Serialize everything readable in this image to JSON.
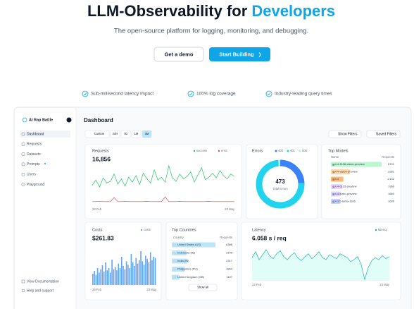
{
  "hero": {
    "title_main": "LLM-Observability for ",
    "title_highlight": "Developers",
    "subtitle": "The open-source platform for logging, monitoring, and debugging.",
    "buttons": [
      "Get a demo",
      "Start Building"
    ],
    "features": [
      "Sub-millisecond latency impact",
      "100% log coverage",
      "Industry-leading query times"
    ]
  },
  "sidebar": {
    "org": "AI Rap Battle",
    "nav": [
      "Dashboard",
      "Requests",
      "Datasets",
      "Prompts",
      "Users",
      "Playground"
    ],
    "footer": [
      "View Documentation",
      "Help and support"
    ]
  },
  "dashboard": {
    "title": "Dashboard",
    "time_filters": [
      "Custom",
      "24H",
      "7D",
      "1M",
      "3M"
    ],
    "actions": [
      "Show Filters",
      "Saved Filters"
    ],
    "requests": {
      "title": "Requests",
      "total": "16,856",
      "x_start": "23 Feb",
      "x_end": "23 May",
      "series": [
        {
          "name": "success",
          "color": "#22c55e",
          "values": [
            42,
            55,
            38,
            60,
            48,
            52,
            70,
            45,
            58,
            40,
            62,
            50,
            66,
            44,
            72,
            58,
            48,
            80,
            55,
            62,
            50,
            90,
            60,
            52,
            70,
            58,
            64,
            75,
            50,
            68,
            85,
            56,
            62,
            72,
            60,
            78,
            66,
            58,
            70,
            64
          ]
        },
        {
          "name": "error",
          "color": "#ef4444",
          "values": [
            2,
            2,
            3,
            2,
            2,
            2,
            12,
            2,
            2,
            3,
            2,
            2,
            2,
            2,
            2,
            3,
            2,
            2,
            2,
            2,
            14,
            2,
            2,
            2,
            3,
            2,
            2,
            2,
            2,
            2,
            2,
            2,
            3,
            2,
            2,
            2,
            2,
            2,
            2,
            2
          ]
        }
      ]
    },
    "errors": {
      "title": "Errors",
      "total": "473",
      "total_label": "Total Errors",
      "series": [
        {
          "name": "400",
          "color": "#3b82f6",
          "values": 115
        },
        {
          "name": "401",
          "color": "#22d3ee",
          "values": 352
        },
        {
          "name": "500",
          "color": "#a5f3fc",
          "values": 6
        }
      ]
    },
    "top_models": {
      "title": "Top Models",
      "columns": [
        "Name",
        "Requests"
      ],
      "rows": [
        {
          "name": "gpt-4-1106-vision-preview",
          "value": 8701,
          "color": "#bbf7d0"
        },
        {
          "name": "gpt-4-vision-preview",
          "value": 3281,
          "color": "#fed7aa"
        },
        {
          "name": "gpt-4",
          "value": 2142,
          "color": "#fdba74"
        },
        {
          "name": "gpt-4-0125-preview",
          "value": 1969,
          "color": "#e9d5ff"
        },
        {
          "name": "gpt-4-turbo-preview",
          "value": 1660,
          "color": "#ddd6fe"
        },
        {
          "name": "gpt-3.5-turbo-1106",
          "value": 1600,
          "color": "#c7d2fe"
        }
      ]
    },
    "costs": {
      "title": "Costs",
      "total": "$261.83",
      "legend": "costs",
      "color": "#60a5fa",
      "x_start": "23 Feb",
      "x_end": "23 May",
      "values": [
        20,
        25,
        18,
        30,
        22,
        28,
        35,
        24,
        40,
        26,
        30,
        22,
        45,
        28,
        32,
        26,
        38,
        30,
        50,
        34,
        28,
        42,
        36,
        30,
        55,
        40,
        34,
        48,
        38,
        44,
        60,
        42,
        36,
        52,
        46,
        40,
        58,
        44,
        50,
        48
      ]
    },
    "top_countries": {
      "title": "Top Countries",
      "columns": [
        "Country",
        "Requests"
      ],
      "show_all": "Show all",
      "rows": [
        {
          "name": "United States (US)",
          "value": 6388
        },
        {
          "name": "Indonesia (ID)",
          "value": 2140
        },
        {
          "name": "India (IN)",
          "value": 2317
        },
        {
          "name": "Philippines (PH)",
          "value": 1894
        },
        {
          "name": "United Kingdom (GB)",
          "value": 1107
        }
      ]
    },
    "latency": {
      "title": "Latency",
      "average": "6.058 s / req",
      "legend": "latency",
      "color": "#14b8a6",
      "x_start": "23 Feb",
      "x_end": "23 May",
      "values": [
        6.2,
        6.8,
        6.0,
        6.5,
        7.0,
        6.4,
        6.1,
        6.6,
        6.9,
        6.3,
        6.0,
        6.4,
        6.7,
        6.2,
        5.9,
        6.3,
        6.6,
        6.1,
        6.4,
        6.8,
        6.2,
        6.0,
        6.5,
        6.3,
        6.1,
        6.6,
        6.4,
        6.2,
        5.8,
        6.0,
        6.3,
        5.5,
        4.0,
        5.2,
        5.9,
        6.2,
        6.0,
        6.4,
        6.1,
        6.3
      ]
    }
  }
}
